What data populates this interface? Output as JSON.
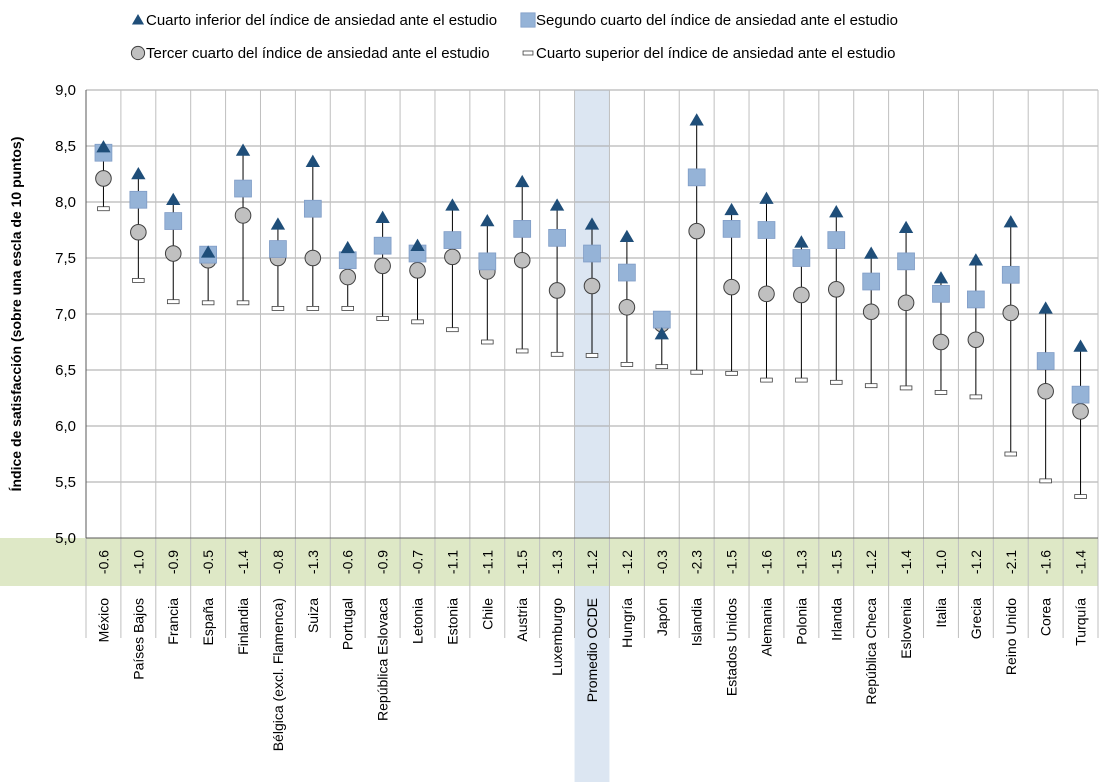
{
  "chart_data": {
    "type": "scatter",
    "ylabel": "Índice de satisfacción (sobre una escla de 10 puntos)",
    "ylim": [
      5.0,
      9.0
    ],
    "yticks": [
      "5,0",
      "5,5",
      "6,0",
      "6,5",
      "7,0",
      "7,5",
      "8,0",
      "8,5",
      "9,0"
    ],
    "grid": true,
    "legend_position": "top",
    "highlight_category": "Promedio OCDE",
    "colors": {
      "q1": "#1f4e79",
      "q2": "#95b3d7",
      "q3": "#c0c0c0",
      "q4": "#ffffff",
      "diff_band": "#d8e4bc",
      "highlight": "#dce6f2"
    },
    "categories": [
      "México",
      "Países Bajos",
      "Francia",
      "España",
      "Finlandia",
      "Bélgica (excl. Flamenca)",
      "Suiza",
      "Portugal",
      "República Eslovaca",
      "Letonia",
      "Estonia",
      "Chile",
      "Austria",
      "Luxemburgo",
      "Promedio OCDE",
      "Hungría",
      "Japón",
      "Islandia",
      "Estados Unidos",
      "Alemania",
      "Polonia",
      "Irlanda",
      "República Checa",
      "Eslovenia",
      "Italia",
      "Grecia",
      "Reino Unido",
      "Corea",
      "Turquía"
    ],
    "differences": [
      "-0.6",
      "-1.0",
      "-0.9",
      "-0.5",
      "-1.4",
      "-0.8",
      "-1.3",
      "-0.6",
      "-0.9",
      "-0.7",
      "-1.1",
      "-1.1",
      "-1.5",
      "-1.3",
      "-1.2",
      "-1.2",
      "-0.3",
      "-2.3",
      "-1.5",
      "-1.6",
      "-1.3",
      "-1.5",
      "-1.2",
      "-1.4",
      "-1.0",
      "-1.2",
      "-2.1",
      "-1.6",
      "-1.4"
    ],
    "series": [
      {
        "name": "Cuarto inferior del índice de ansiedad ante el estudio",
        "marker": "triangle",
        "values": [
          8.49,
          8.25,
          8.02,
          7.55,
          8.46,
          7.8,
          8.36,
          7.59,
          7.86,
          7.61,
          7.97,
          7.83,
          8.18,
          7.97,
          7.8,
          7.69,
          6.82,
          8.73,
          7.93,
          8.03,
          7.64,
          7.91,
          7.54,
          7.77,
          7.32,
          7.48,
          7.82,
          7.05,
          6.71
        ]
      },
      {
        "name": "Segundo cuarto del índice de ansiedad ante el estudio",
        "marker": "square",
        "values": [
          8.44,
          8.02,
          7.83,
          7.53,
          8.12,
          7.58,
          7.94,
          7.48,
          7.61,
          7.54,
          7.66,
          7.47,
          7.76,
          7.68,
          7.54,
          7.37,
          6.95,
          8.22,
          7.76,
          7.75,
          7.5,
          7.66,
          7.29,
          7.47,
          7.18,
          7.13,
          7.35,
          6.58,
          6.28
        ]
      },
      {
        "name": "Tercer cuarto del índice de ansiedad ante el estudio",
        "marker": "circle",
        "values": [
          8.21,
          7.73,
          7.54,
          7.48,
          7.88,
          7.5,
          7.5,
          7.33,
          7.43,
          7.39,
          7.51,
          7.38,
          7.48,
          7.21,
          7.25,
          7.06,
          6.91,
          7.74,
          7.24,
          7.18,
          7.17,
          7.22,
          7.02,
          7.1,
          6.75,
          6.77,
          7.01,
          6.31,
          6.13
        ]
      },
      {
        "name": "Cuarto superior del índice de ansiedad ante el estudio",
        "marker": "dash",
        "values": [
          7.94,
          7.3,
          7.11,
          7.1,
          7.1,
          7.05,
          7.05,
          7.05,
          6.96,
          6.93,
          6.86,
          6.75,
          6.67,
          6.64,
          6.63,
          6.55,
          6.53,
          6.48,
          6.47,
          6.41,
          6.41,
          6.39,
          6.36,
          6.34,
          6.3,
          6.26,
          5.75,
          5.51,
          5.37
        ]
      }
    ]
  }
}
